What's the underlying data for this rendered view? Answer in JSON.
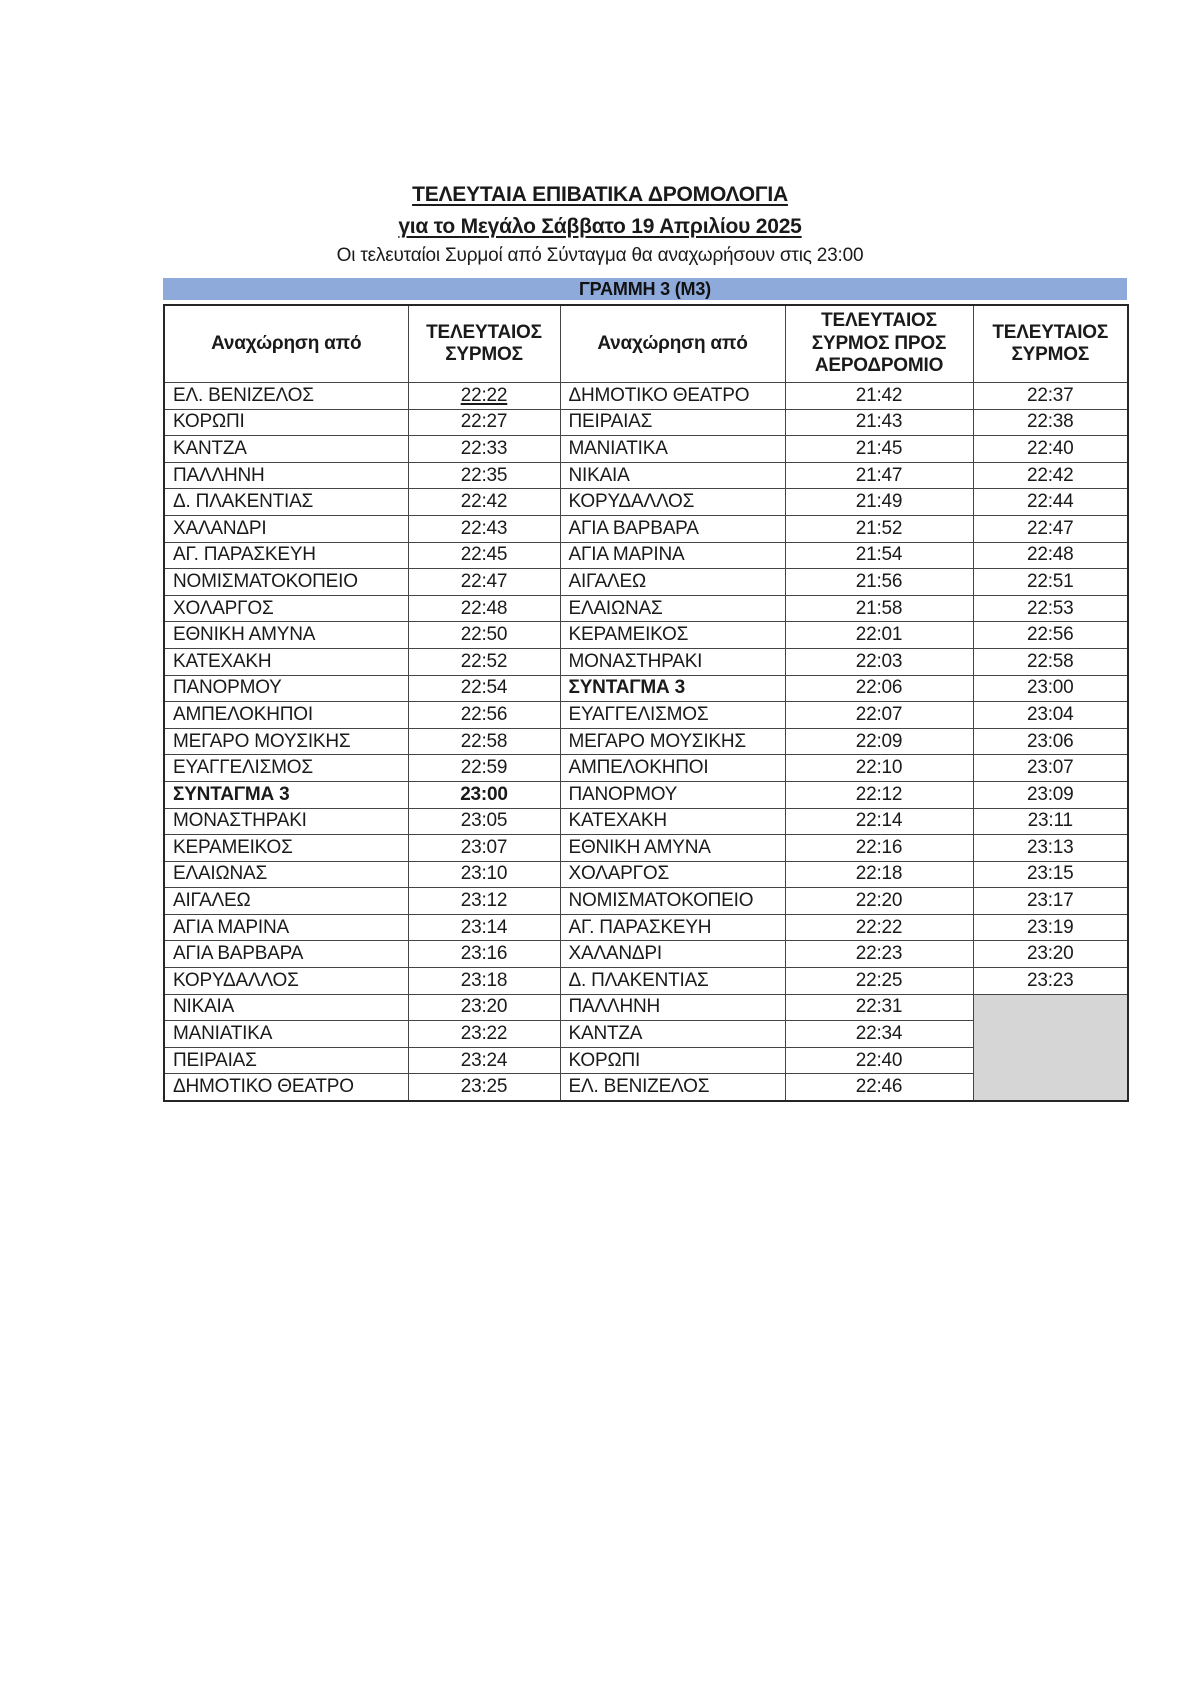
{
  "page": {
    "title": "ΤΕΛΕΥΤΑΙΑ ΕΠΙΒΑΤΙΚΑ ΔΡΟΜΟΛΟΓΙΑ",
    "subtitle": "για το Μεγάλο Σάββατο 19 Απριλίου 2025",
    "note": "Οι τελευταίοι Συρμοί από Σύνταγμα θα αναχωρήσουν στις 23:00"
  },
  "table": {
    "band_title": "ΓΡΑΜΜΗ 3 (Μ3)",
    "band_color": "#8EAADB",
    "empty_cell_color": "#D6D6D6",
    "headers": [
      "Αναχώρηση από",
      "ΤΕΛΕΥΤΑΙΟΣ ΣΥΡΜΟΣ",
      "Αναχώρηση από",
      "ΤΕΛΕΥΤΑΙΟΣ ΣΥΡΜΟΣ ΠΡΟΣ ΑΕΡΟΔΡΟΜΙΟ",
      "ΤΕΛΕΥΤΑΙΟΣ ΣΥΡΜΟΣ"
    ],
    "rows": [
      {
        "a": "ΕΛ. ΒΕΝΙΖΕΛΟΣ",
        "ta": "22:22",
        "b": "ΔΗΜΟΤΙΚΟ ΘΕΑΤΡΟ",
        "tb": "21:42",
        "tc": "22:37",
        "ua": true
      },
      {
        "a": "ΚΟΡΩΠΙ",
        "ta": "22:27",
        "b": "ΠΕΙΡΑΙΑΣ",
        "tb": "21:43",
        "tc": "22:38"
      },
      {
        "a": "ΚΑΝΤΖΑ",
        "ta": "22:33",
        "b": "ΜΑΝΙΑΤΙΚΑ",
        "tb": "21:45",
        "tc": "22:40"
      },
      {
        "a": "ΠΑΛΛΗΝΗ",
        "ta": "22:35",
        "b": "ΝΙΚΑΙΑ",
        "tb": "21:47",
        "tc": "22:42"
      },
      {
        "a": "Δ. ΠΛΑΚΕΝΤΙΑΣ",
        "ta": "22:42",
        "b": "ΚΟΡΥΔΑΛΛΟΣ",
        "tb": "21:49",
        "tc": "22:44"
      },
      {
        "a": "ΧΑΛΑΝΔΡΙ",
        "ta": "22:43",
        "b": "ΑΓΙΑ ΒΑΡΒΑΡΑ",
        "tb": "21:52",
        "tc": "22:47"
      },
      {
        "a": "ΑΓ. ΠΑΡΑΣΚΕΥΗ",
        "ta": "22:45",
        "b": "ΑΓΙΑ ΜΑΡΙΝΑ",
        "tb": "21:54",
        "tc": "22:48"
      },
      {
        "a": "ΝΟΜΙΣΜΑΤΟΚΟΠΕΙΟ",
        "ta": "22:47",
        "b": "ΑΙΓΑΛΕΩ",
        "tb": "21:56",
        "tc": "22:51"
      },
      {
        "a": "ΧΟΛΑΡΓΟΣ",
        "ta": "22:48",
        "b": "ΕΛΑΙΩΝΑΣ",
        "tb": "21:58",
        "tc": "22:53"
      },
      {
        "a": "ΕΘΝΙΚΗ ΑΜΥΝΑ",
        "ta": "22:50",
        "b": "ΚΕΡΑΜΕΙΚΟΣ",
        "tb": "22:01",
        "tc": "22:56"
      },
      {
        "a": "ΚΑΤΕΧΑΚΗ",
        "ta": "22:52",
        "b": "ΜΟΝΑΣΤΗΡΑΚΙ",
        "tb": "22:03",
        "tc": "22:58"
      },
      {
        "a": "ΠΑΝΟΡΜΟΥ",
        "ta": "22:54",
        "b": "ΣΥΝΤΑΓΜΑ 3",
        "tb": "22:06",
        "tc": "23:00",
        "bb": true
      },
      {
        "a": "ΑΜΠΕΛΟΚΗΠΟΙ",
        "ta": "22:56",
        "b": "ΕΥΑΓΓΕΛΙΣΜΟΣ",
        "tb": "22:07",
        "tc": "23:04"
      },
      {
        "a": "ΜΕΓΑΡΟ ΜΟΥΣΙΚΗΣ",
        "ta": "22:58",
        "b": "ΜΕΓΑΡΟ ΜΟΥΣΙΚΗΣ",
        "tb": "22:09",
        "tc": "23:06"
      },
      {
        "a": "ΕΥΑΓΓΕΛΙΣΜΟΣ",
        "ta": "22:59",
        "b": "ΑΜΠΕΛΟΚΗΠΟΙ",
        "tb": "22:10",
        "tc": "23:07"
      },
      {
        "a": "ΣΥΝΤΑΓΜΑ 3",
        "ta": "23:00",
        "b": "ΠΑΝΟΡΜΟΥ",
        "tb": "22:12",
        "tc": "23:09",
        "ba": true,
        "bta": true
      },
      {
        "a": "ΜΟΝΑΣΤΗΡΑΚΙ",
        "ta": "23:05",
        "b": "ΚΑΤΕΧΑΚΗ",
        "tb": "22:14",
        "tc": "23:11"
      },
      {
        "a": "ΚΕΡΑΜΕΙΚΟΣ",
        "ta": "23:07",
        "b": "ΕΘΝΙΚΗ ΑΜΥΝΑ",
        "tb": "22:16",
        "tc": "23:13"
      },
      {
        "a": "ΕΛΑΙΩΝΑΣ",
        "ta": "23:10",
        "b": "ΧΟΛΑΡΓΟΣ",
        "tb": "22:18",
        "tc": "23:15"
      },
      {
        "a": "ΑΙΓΑΛΕΩ",
        "ta": "23:12",
        "b": "ΝΟΜΙΣΜΑΤΟΚΟΠΕΙΟ",
        "tb": "22:20",
        "tc": "23:17"
      },
      {
        "a": "ΑΓΙΑ ΜΑΡΙΝΑ",
        "ta": "23:14",
        "b": "ΑΓ. ΠΑΡΑΣΚΕΥΗ",
        "tb": "22:22",
        "tc": "23:19"
      },
      {
        "a": "ΑΓΙΑ ΒΑΡΒΑΡΑ",
        "ta": "23:16",
        "b": "ΧΑΛΑΝΔΡΙ",
        "tb": "22:23",
        "tc": "23:20"
      },
      {
        "a": "ΚΟΡΥΔΑΛΛΟΣ",
        "ta": "23:18",
        "b": "Δ. ΠΛΑΚΕΝΤΙΑΣ",
        "tb": "22:25",
        "tc": "23:23"
      },
      {
        "a": "ΝΙΚΑΙΑ",
        "ta": "23:20",
        "b": "ΠΑΛΛΗΝΗ",
        "tb": "22:31",
        "tc": null
      },
      {
        "a": "ΜΑΝΙΑΤΙΚΑ",
        "ta": "23:22",
        "b": "ΚΑΝΤΖΑ",
        "tb": "22:34",
        "tc": null
      },
      {
        "a": "ΠΕΙΡΑΙΑΣ",
        "ta": "23:24",
        "b": "ΚΟΡΩΠΙ",
        "tb": "22:40",
        "tc": null
      },
      {
        "a": "ΔΗΜΟΤΙΚΟ ΘΕΑΤΡΟ",
        "ta": "23:25",
        "b": "ΕΛ. ΒΕΝΙΖΕΛΟΣ",
        "tb": "22:46",
        "tc": null
      }
    ]
  }
}
